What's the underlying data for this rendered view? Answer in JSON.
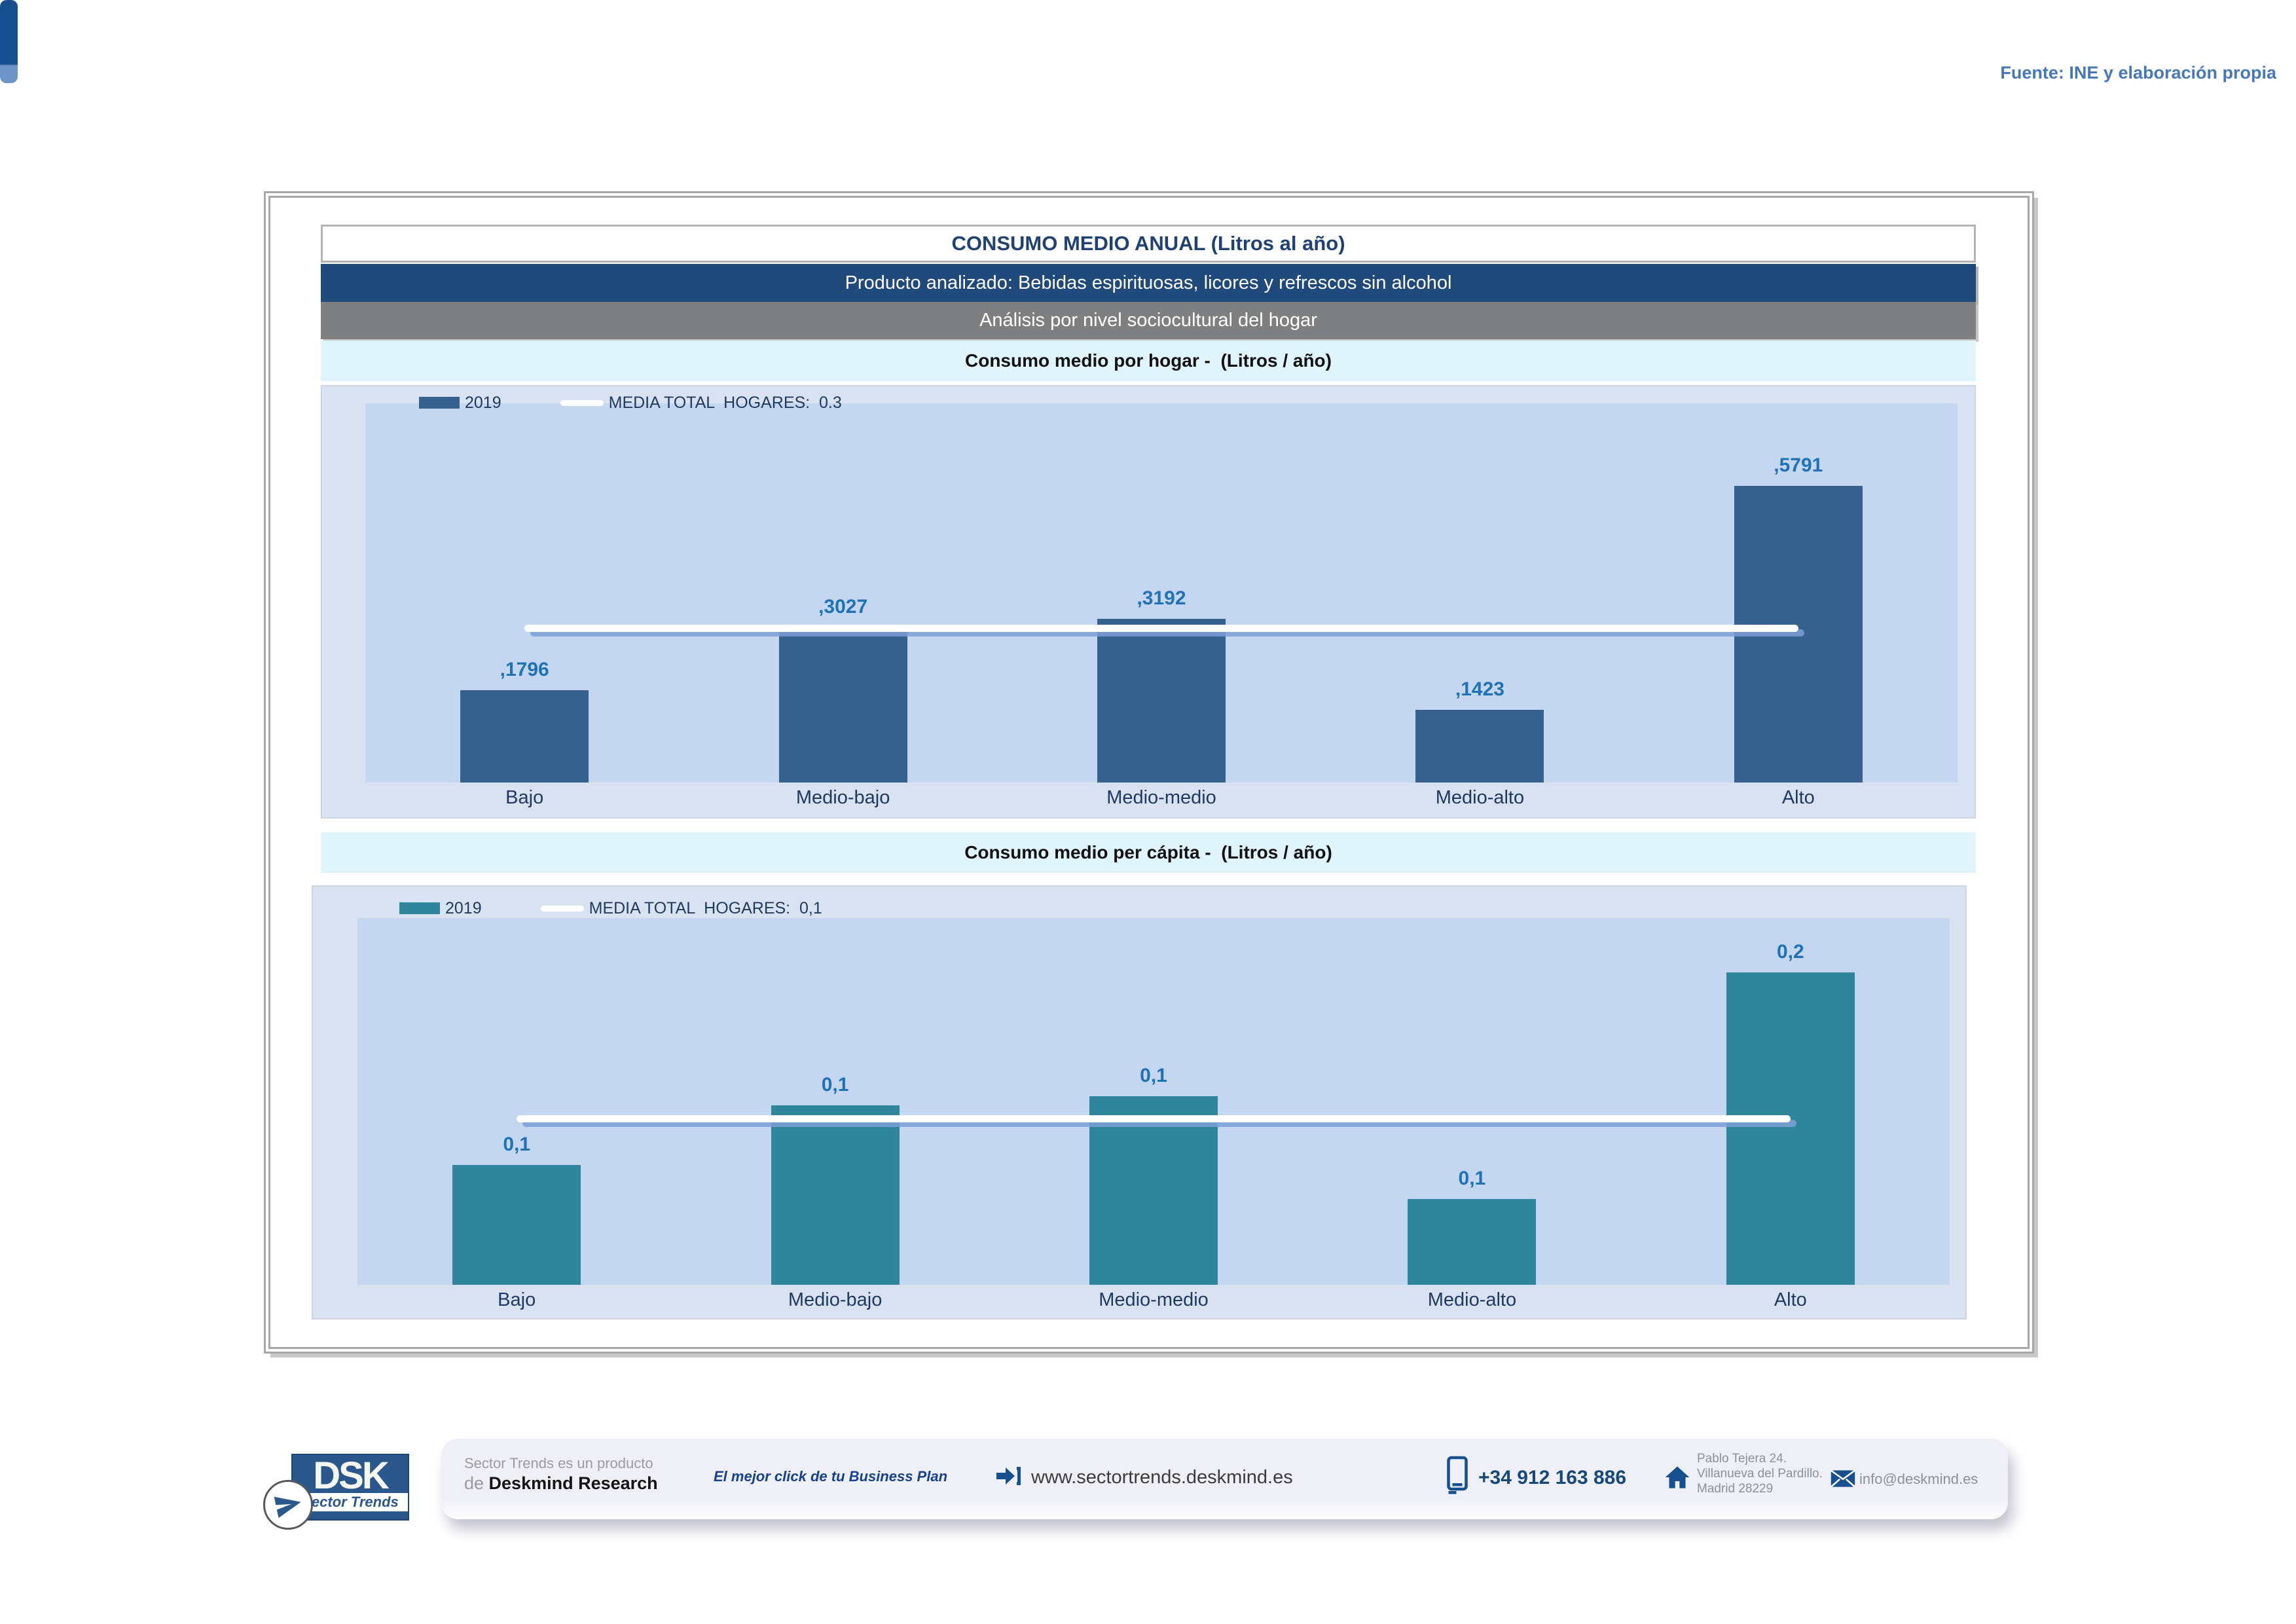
{
  "source_note": "Fuente: INE y elaboración propia",
  "header": {
    "title": "CONSUMO MEDIO ANUAL (Litros al año)",
    "product_band": "Producto analizado: Bebidas espirituosas, licores y refrescos sin alcohol",
    "analysis_band": "Análisis por nivel sociocultural del hogar"
  },
  "chart_data": [
    {
      "type": "bar",
      "title": "Consumo medio por hogar -  (Litros / año)",
      "categories": [
        "Bajo",
        "Medio-bajo",
        "Medio-medio",
        "Medio-alto",
        "Alto"
      ],
      "series": [
        {
          "name": "2019",
          "values": [
            0.1796,
            0.3027,
            0.3192,
            0.1423,
            0.5791
          ]
        }
      ],
      "value_labels": [
        ",1796",
        ",3027",
        ",3192",
        ",1423",
        ",5791"
      ],
      "media_line": {
        "label": "MEDIA TOTAL  HOGARES:  0.3",
        "value": 0.3
      },
      "legend_position": "top-left",
      "grid": false,
      "ylim": [
        0,
        0.74
      ],
      "bar_color": "#36618F",
      "unit": "Litros / año"
    },
    {
      "type": "bar",
      "title": "Consumo medio per cápita -  (Litros / año)",
      "categories": [
        "Bajo",
        "Medio-bajo",
        "Medio-medio",
        "Medio-alto",
        "Alto"
      ],
      "series": [
        {
          "name": "2019",
          "values": [
            0.077,
            0.115,
            0.121,
            0.055,
            0.2
          ]
        }
      ],
      "value_labels": [
        "0,1",
        "0,1",
        "0,1",
        "0,1",
        "0,2"
      ],
      "media_line": {
        "label": "MEDIA TOTAL  HOGARES:  0,1",
        "value": 0.106
      },
      "legend_position": "top-left",
      "grid": false,
      "ylim": [
        0,
        0.235
      ],
      "bar_color": "#2F869C",
      "unit": "Litros / año"
    }
  ],
  "footer": {
    "logo_text": "DSK",
    "logo_subtext": "Sector Trends",
    "attribution_line1": "Sector Trends es un producto",
    "attribution_prefix": "de ",
    "company": "Deskmind Research",
    "slogan": "El mejor click de tu Business Plan",
    "website": "www.sectortrends.deskmind.es",
    "phone": "+34 912 163 886",
    "address_lines": [
      "Pablo Tejera 24.",
      "Villanueva del Pardillo.",
      "Madrid 28229"
    ],
    "email": "info@deskmind.es"
  },
  "colors": {
    "header_product_bg": "#204A7C",
    "header_analysis_bg": "#7E7F81",
    "section_band_bg": "#DFF4FB",
    "chart_outer_bg": "#D9E2F1",
    "plot_bg": "#C5D7F0",
    "bar_hogar": "#36618F",
    "bar_capita": "#2F869C",
    "value_label": "#1F72B5",
    "category_label": "#1F3864",
    "media_line": "#FFFFFF",
    "accent_blue": "#17508F",
    "source_note": "#4678B8"
  }
}
